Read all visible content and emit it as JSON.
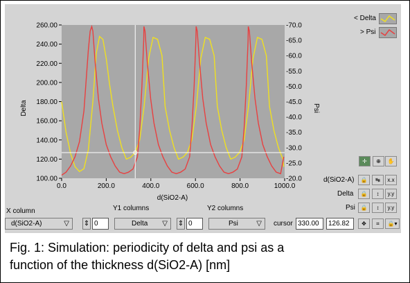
{
  "chart_data": {
    "type": "line",
    "xlabel": "d(SiO2-A)",
    "ylabel": "Delta",
    "y2label": "Psi",
    "xlim": [
      0,
      1000
    ],
    "ylim": [
      100,
      260
    ],
    "y2lim": [
      20,
      70
    ],
    "x_ticks": [
      "0.0",
      "200.0",
      "400.0",
      "600.0",
      "800.0",
      "1000.0"
    ],
    "y_ticks": [
      "100.00",
      "120.00",
      "140.00",
      "160.00",
      "180.00",
      "200.00",
      "220.00",
      "240.00",
      "260.00"
    ],
    "y2_ticks": [
      "-20.0",
      "-25.0",
      "-30.0",
      "-35.0",
      "-40.0",
      "-45.0",
      "-50.0",
      "-55.0",
      "-60.0",
      "-65.0",
      "-70.0"
    ],
    "grid": false,
    "legend": "top-right",
    "period": 234,
    "series": [
      {
        "name": "Delta",
        "axis": "left",
        "color": "#f0e020",
        "x": [
          0,
          20,
          40,
          60,
          80,
          100,
          120,
          140,
          155,
          170,
          185,
          200,
          215,
          230,
          250,
          270,
          290,
          310,
          330,
          350,
          370,
          390,
          410,
          430,
          450
        ],
        "y": [
          180,
          148,
          126,
          112,
          107,
          110,
          130,
          180,
          230,
          248,
          245,
          225,
          198,
          175,
          150,
          132,
          120,
          122,
          127,
          140,
          175,
          225,
          247,
          245,
          228
        ]
      },
      {
        "name": "Psi",
        "axis": "right",
        "color": "#e84040",
        "x": [
          0,
          20,
          40,
          60,
          80,
          100,
          110,
          120,
          128,
          135,
          140,
          150,
          165,
          180,
          200,
          220,
          240,
          260,
          280,
          300,
          320,
          340,
          350,
          360,
          368
        ],
        "y": [
          21,
          22,
          24,
          27,
          32,
          42,
          52,
          62,
          68,
          69.5,
          68,
          58,
          46,
          38,
          31,
          27,
          24,
          22,
          21.5,
          22,
          23,
          27,
          36,
          50,
          65
        ]
      }
    ],
    "cursor": {
      "x": 330.0,
      "y": 126.82
    }
  },
  "legend": {
    "delta": "< Delta",
    "psi": "> Psi"
  },
  "right_panel": {
    "row1_label": "d(SiO2-A)",
    "row2_label": "Delta",
    "row3_label": "Psi"
  },
  "controls": {
    "x_column_label": "X column",
    "x_column_value": "d(SiO2-A)",
    "x_index": "0",
    "y1_label": "Y1 columns",
    "y1_value": "Delta",
    "y1_index": "0",
    "y2_label": "Y2 columns",
    "y2_value": "Psi",
    "cursor_label": "cursor",
    "cursor_x": "330.00",
    "cursor_y": "126.82"
  },
  "caption": {
    "line1": "Fig. 1: Simulation: periodicity of delta and psi as a",
    "line2": "function of the thickness d(SiO2-A) [nm]"
  }
}
